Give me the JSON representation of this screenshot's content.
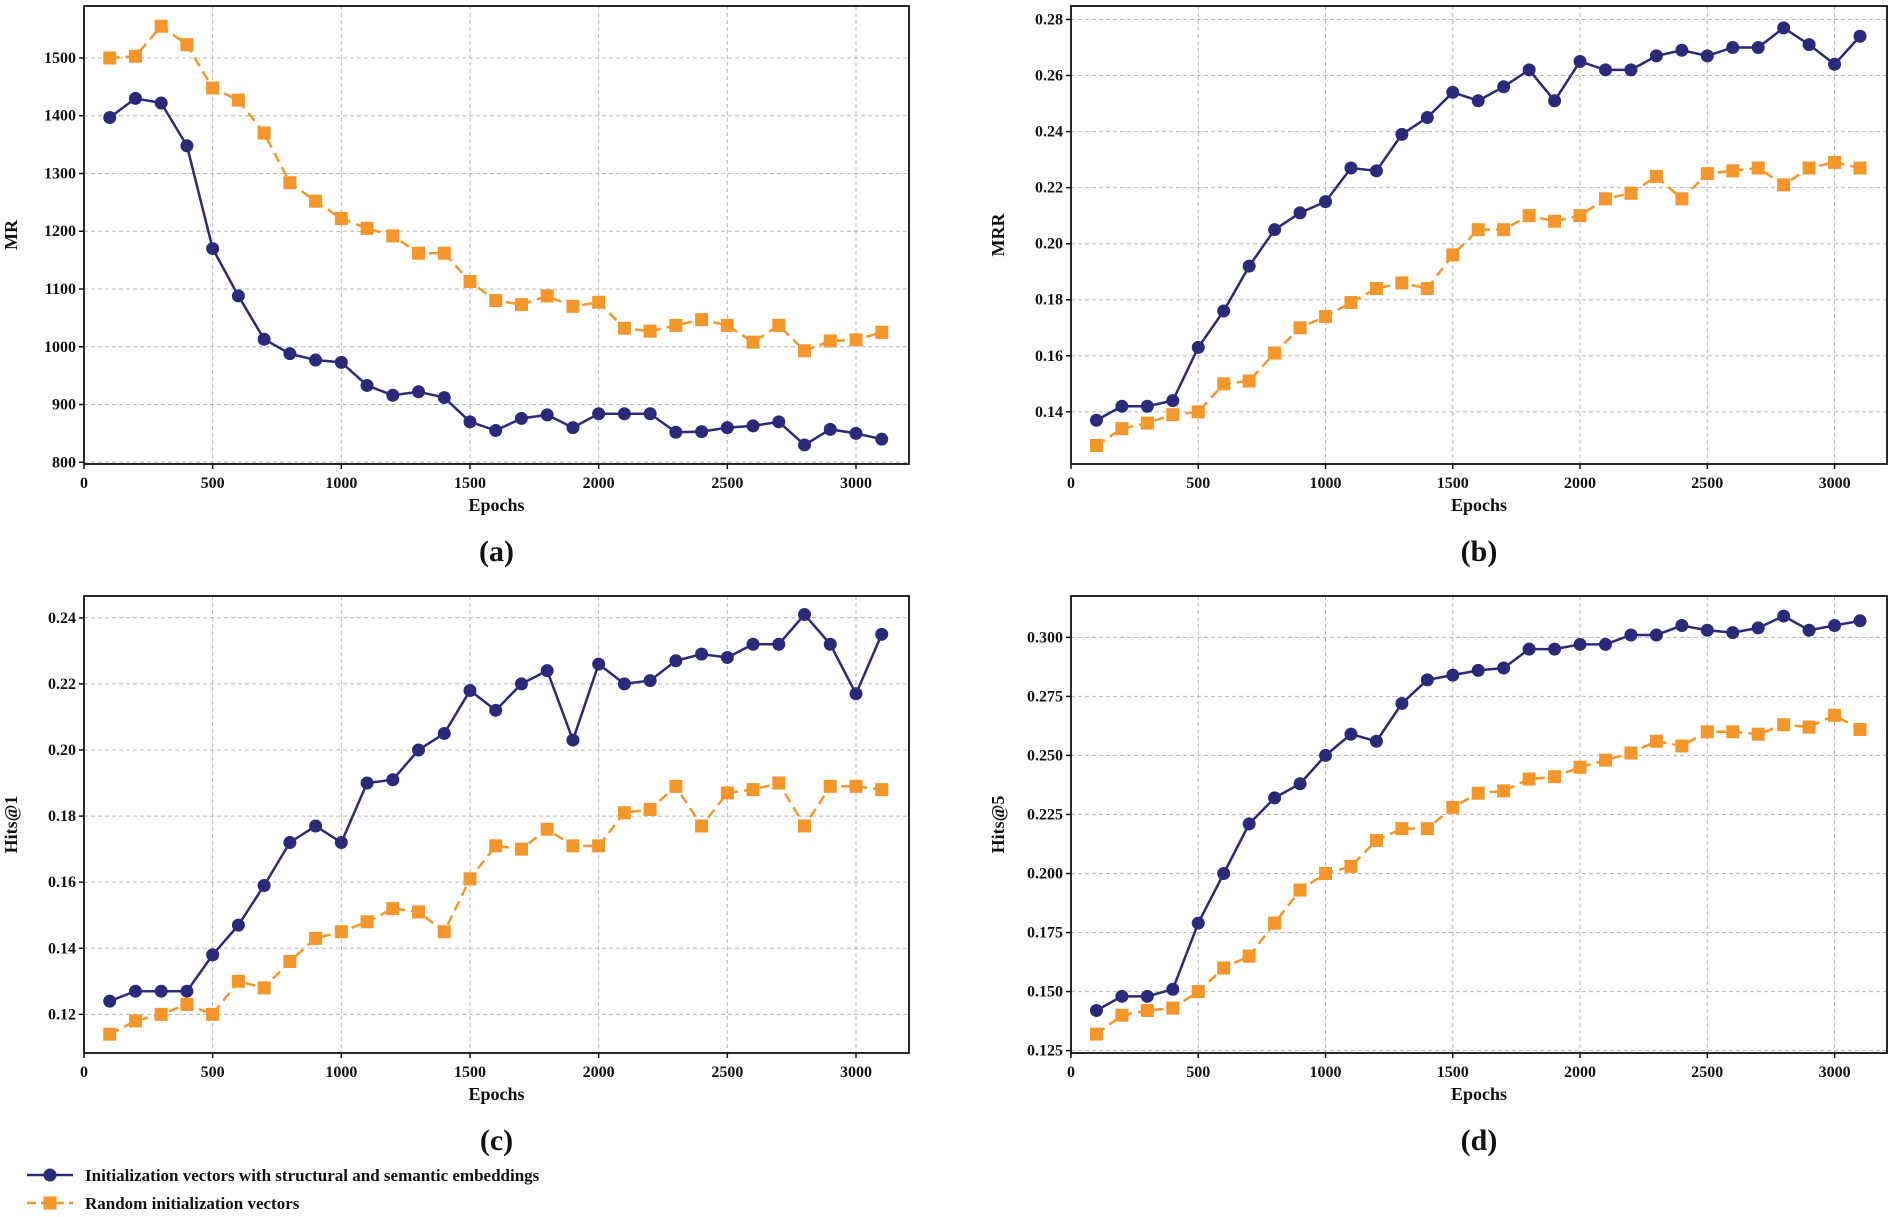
{
  "colors": {
    "series1": "#2b2a7a",
    "series2": "#f5962a"
  },
  "legend": {
    "placement": "bottom-left",
    "items": [
      {
        "label": "Initialization vectors with structural and semantic embeddings",
        "marker": "circle",
        "line": "solid"
      },
      {
        "label": "Random initialization vectors",
        "marker": "square",
        "line": "dashed"
      }
    ]
  },
  "chart_data": [
    {
      "type": "line",
      "panel_label": "(a)",
      "xlabel": "Epochs",
      "ylabel": "MR",
      "xlim": [
        0,
        3206
      ],
      "ylim": [
        797,
        1590
      ],
      "grid": true,
      "xticks": [
        0,
        500,
        1000,
        1500,
        2000,
        2500,
        3000
      ],
      "yticks": [
        800,
        900,
        1000,
        1100,
        1200,
        1300,
        1400,
        1500
      ],
      "ytick_decimals": 0,
      "x": [
        100,
        200,
        300,
        400,
        500,
        600,
        700,
        800,
        900,
        1000,
        1100,
        1200,
        1300,
        1400,
        1500,
        1600,
        1700,
        1800,
        1900,
        2000,
        2100,
        2200,
        2300,
        2400,
        2500,
        2600,
        2700,
        2800,
        2900,
        3000,
        3100
      ],
      "series": [
        {
          "name": "Initialization vectors with structural and semantic embeddings",
          "values": [
            1397,
            1430,
            1422,
            1348,
            1170,
            1088,
            1013,
            988,
            977,
            973,
            933,
            916,
            922,
            912,
            870,
            855,
            876,
            882,
            860,
            884,
            884,
            884,
            852,
            853,
            860,
            863,
            870,
            830,
            857,
            850,
            840
          ]
        },
        {
          "name": "Random initialization vectors",
          "values": [
            1500,
            1503,
            1555,
            1523,
            1448,
            1427,
            1370,
            1284,
            1252,
            1222,
            1205,
            1192,
            1162,
            1162,
            1113,
            1080,
            1073,
            1088,
            1070,
            1077,
            1032,
            1027,
            1037,
            1047,
            1037,
            1008,
            1037,
            993,
            1010,
            1012,
            1025
          ]
        }
      ]
    },
    {
      "type": "line",
      "panel_label": "(b)",
      "xlabel": "Epochs",
      "ylabel": "MRR",
      "xlim": [
        0,
        3206
      ],
      "ylim": [
        0.1214,
        0.2848
      ],
      "grid": true,
      "xticks": [
        0,
        500,
        1000,
        1500,
        2000,
        2500,
        3000
      ],
      "yticks": [
        0.14,
        0.16,
        0.18,
        0.2,
        0.22,
        0.24,
        0.26,
        0.28
      ],
      "ytick_decimals": 2,
      "x": [
        100,
        200,
        300,
        400,
        500,
        600,
        700,
        800,
        900,
        1000,
        1100,
        1200,
        1300,
        1400,
        1500,
        1600,
        1700,
        1800,
        1900,
        2000,
        2100,
        2200,
        2300,
        2400,
        2500,
        2600,
        2700,
        2800,
        2900,
        3000,
        3100
      ],
      "series": [
        {
          "name": "Initialization vectors with structural and semantic embeddings",
          "values": [
            0.137,
            0.142,
            0.142,
            0.144,
            0.163,
            0.176,
            0.192,
            0.205,
            0.211,
            0.215,
            0.227,
            0.226,
            0.239,
            0.245,
            0.254,
            0.251,
            0.256,
            0.262,
            0.251,
            0.265,
            0.262,
            0.262,
            0.267,
            0.269,
            0.267,
            0.27,
            0.27,
            0.277,
            0.271,
            0.264,
            0.274
          ]
        },
        {
          "name": "Random initialization vectors",
          "values": [
            0.128,
            0.134,
            0.136,
            0.139,
            0.14,
            0.15,
            0.151,
            0.161,
            0.17,
            0.174,
            0.179,
            0.184,
            0.186,
            0.184,
            0.196,
            0.205,
            0.205,
            0.21,
            0.208,
            0.21,
            0.216,
            0.218,
            0.224,
            0.216,
            0.225,
            0.226,
            0.227,
            0.221,
            0.227,
            0.229,
            0.227
          ]
        }
      ]
    },
    {
      "type": "line",
      "panel_label": "(c)",
      "xlabel": "Epochs",
      "ylabel": "Hits@1",
      "xlim": [
        0,
        3206
      ],
      "ylim": [
        0.1083,
        0.2466
      ],
      "grid": true,
      "xticks": [
        0,
        500,
        1000,
        1500,
        2000,
        2500,
        3000
      ],
      "yticks": [
        0.12,
        0.14,
        0.16,
        0.18,
        0.2,
        0.22,
        0.24
      ],
      "ytick_decimals": 2,
      "x": [
        100,
        200,
        300,
        400,
        500,
        600,
        700,
        800,
        900,
        1000,
        1100,
        1200,
        1300,
        1400,
        1500,
        1600,
        1700,
        1800,
        1900,
        2000,
        2100,
        2200,
        2300,
        2400,
        2500,
        2600,
        2700,
        2800,
        2900,
        3000,
        3100
      ],
      "series": [
        {
          "name": "Initialization vectors with structural and semantic embeddings",
          "values": [
            0.124,
            0.127,
            0.127,
            0.127,
            0.138,
            0.147,
            0.159,
            0.172,
            0.177,
            0.172,
            0.19,
            0.191,
            0.2,
            0.205,
            0.218,
            0.212,
            0.22,
            0.224,
            0.203,
            0.226,
            0.22,
            0.221,
            0.227,
            0.229,
            0.228,
            0.232,
            0.232,
            0.241,
            0.232,
            0.217,
            0.235
          ]
        },
        {
          "name": "Random initialization vectors",
          "values": [
            0.114,
            0.118,
            0.12,
            0.123,
            0.12,
            0.13,
            0.128,
            0.136,
            0.143,
            0.145,
            0.148,
            0.152,
            0.151,
            0.145,
            0.161,
            0.171,
            0.17,
            0.176,
            0.171,
            0.171,
            0.181,
            0.182,
            0.189,
            0.177,
            0.187,
            0.188,
            0.19,
            0.177,
            0.189,
            0.189,
            0.188
          ]
        }
      ]
    },
    {
      "type": "line",
      "panel_label": "(d)",
      "xlabel": "Epochs",
      "ylabel": "Hits@5",
      "xlim": [
        0,
        3206
      ],
      "ylim": [
        0.124,
        0.3175
      ],
      "grid": true,
      "xticks": [
        0,
        500,
        1000,
        1500,
        2000,
        2500,
        3000
      ],
      "yticks": [
        0.125,
        0.15,
        0.175,
        0.2,
        0.225,
        0.25,
        0.275,
        0.3
      ],
      "ytick_decimals": 3,
      "x": [
        100,
        200,
        300,
        400,
        500,
        600,
        700,
        800,
        900,
        1000,
        1100,
        1200,
        1300,
        1400,
        1500,
        1600,
        1700,
        1800,
        1900,
        2000,
        2100,
        2200,
        2300,
        2400,
        2500,
        2600,
        2700,
        2800,
        2900,
        3000,
        3100
      ],
      "series": [
        {
          "name": "Initialization vectors with structural and semantic embeddings",
          "values": [
            0.142,
            0.148,
            0.148,
            0.151,
            0.179,
            0.2,
            0.221,
            0.232,
            0.238,
            0.25,
            0.259,
            0.256,
            0.272,
            0.282,
            0.284,
            0.286,
            0.287,
            0.295,
            0.295,
            0.297,
            0.297,
            0.301,
            0.301,
            0.305,
            0.303,
            0.302,
            0.304,
            0.309,
            0.303,
            0.305,
            0.307
          ]
        },
        {
          "name": "Random initialization vectors",
          "values": [
            0.132,
            0.14,
            0.142,
            0.143,
            0.15,
            0.16,
            0.165,
            0.179,
            0.193,
            0.2,
            0.203,
            0.214,
            0.219,
            0.219,
            0.228,
            0.234,
            0.235,
            0.24,
            0.241,
            0.245,
            0.248,
            0.251,
            0.256,
            0.254,
            0.26,
            0.26,
            0.259,
            0.263,
            0.262,
            0.267,
            0.261
          ]
        }
      ]
    }
  ]
}
